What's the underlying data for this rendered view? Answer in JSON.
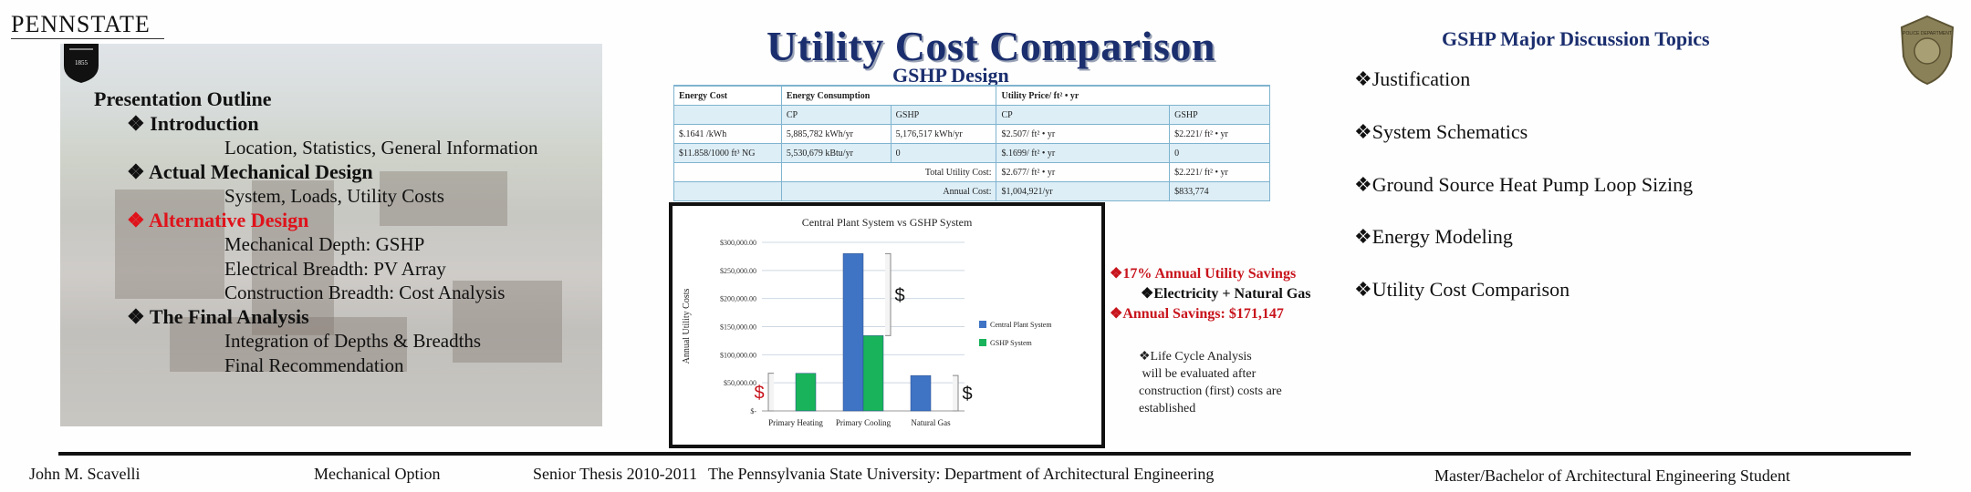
{
  "header": {
    "brand": "PENNSTATE",
    "shield_year": "1855",
    "title": "Utility Cost Comparison",
    "subtitle": "GSHP Design"
  },
  "outline": {
    "heading": "Presentation Outline",
    "sections": [
      {
        "label": "Introduction",
        "items": [
          "Location, Statistics, General Information"
        ]
      },
      {
        "label": "Actual Mechanical Design",
        "items": [
          "System, Loads, Utility Costs"
        ]
      },
      {
        "label": "Alternative Design",
        "items": [
          "Mechanical Depth: GSHP",
          "Electrical Breadth: PV Array",
          "Construction Breadth: Cost Analysis"
        ]
      },
      {
        "label": "The Final Analysis",
        "items": [
          "Integration of Depths & Breadths",
          "Final Recommendation"
        ]
      }
    ],
    "bullet": "❖"
  },
  "cost_table": {
    "headers": [
      "Energy Cost",
      "Energy Consumption",
      "Utility Price/ ft² • yr"
    ],
    "subheaders": [
      "CP",
      "GSHP",
      "CP",
      "GSHP"
    ],
    "rows": [
      [
        "$.1641 /kWh",
        "5,885,782 kWh/yr",
        "5,176,517 kWh/yr",
        "$2.507/ ft² • yr",
        "$2.221/ ft² • yr"
      ],
      [
        "$11.858/1000 ft³ NG",
        "5,530,679 kBtu/yr",
        "0",
        "$.1699/ ft² • yr",
        "0"
      ]
    ],
    "total_label": "Total Utility Cost:",
    "total_cp": "$2.677/ ft² • yr",
    "total_gshp": "$2.221/ ft² • yr",
    "annual_label": "Annual Cost:",
    "annual_cp": "$1,004,921/yr",
    "annual_gshp": "$833,774"
  },
  "chart_data": {
    "type": "bar",
    "title": "Central Plant System  vs GSHP System",
    "ylabel": "Annual Utility Costs",
    "xlabel": "",
    "categories": [
      "Primary Heating",
      "Primary Cooling",
      "Natural Gas"
    ],
    "series": [
      {
        "name": "Central Plant System",
        "color": "#3f73c4",
        "values": [
          0,
          280000,
          63000
        ]
      },
      {
        "name": "GSHP System",
        "color": "#18b35a",
        "values": [
          67000,
          134000,
          0
        ]
      }
    ],
    "ylim": [
      0,
      300000
    ],
    "yticks": [
      "$-",
      "$50,000.00",
      "$100,000.00",
      "$150,000.00",
      "$200,000.00",
      "$250,000.00",
      "$300,000.00"
    ],
    "annotations": [
      "$",
      "$",
      "$"
    ]
  },
  "savings": {
    "line1": "❖17% Annual Utility Savings",
    "line2": "❖Electricity + Natural Gas",
    "line3": "❖Annual Savings: $171,147",
    "lca": [
      "❖Life Cycle Analysis",
      " will be evaluated after",
      "construction (first) costs are",
      "established"
    ]
  },
  "topics": {
    "heading": "GSHP Major Discussion Topics",
    "items": [
      "❖Justification",
      "❖System Schematics",
      "❖Ground Source Heat Pump Loop Sizing",
      "❖Energy Modeling",
      "❖Utility Cost Comparison"
    ]
  },
  "badge_text": "POLICE DEPARTMENT",
  "footer": {
    "name": "John M. Scavelli",
    "option": "Mechanical Option",
    "thesis": "Senior Thesis 2010-2011",
    "university": "The Pennsylvania State University: Department of Architectural Engineering",
    "degree": "Master/Bachelor of Architectural Engineering Student"
  },
  "colors": {
    "title": "#1b2e6e",
    "accent_red": "#e0121a",
    "table_border": "#7fb3cf"
  }
}
